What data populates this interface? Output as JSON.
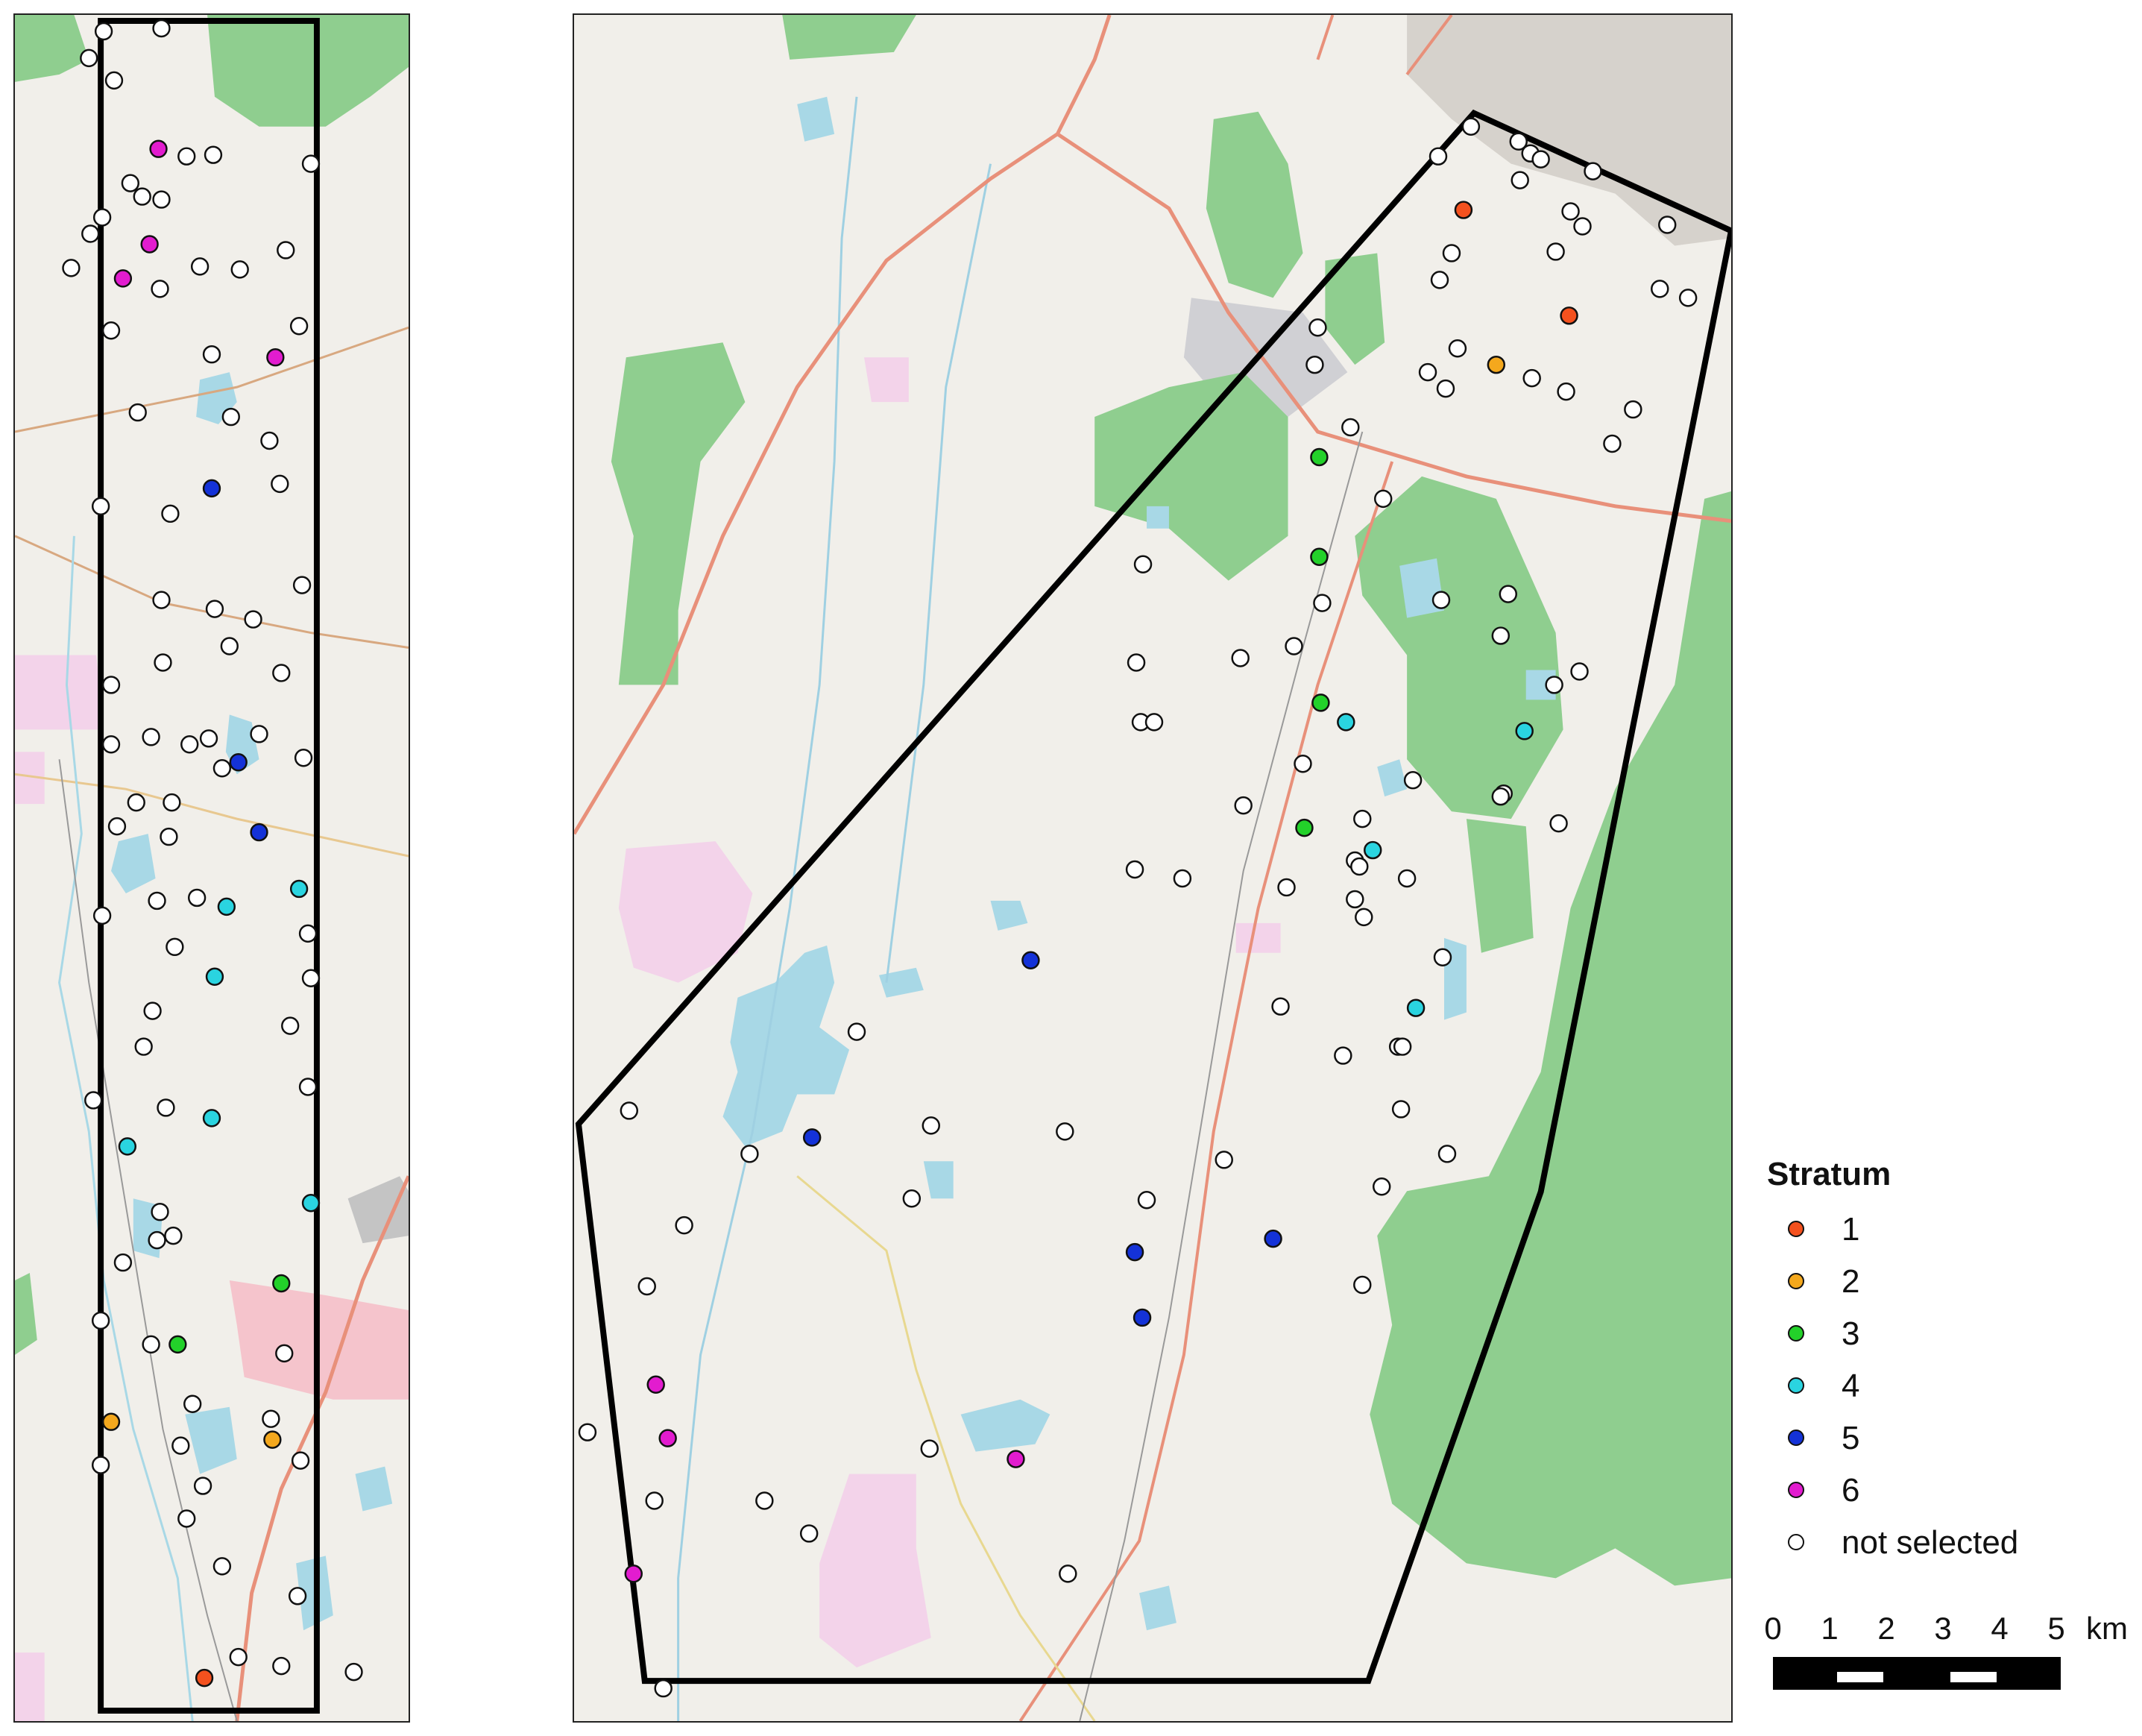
{
  "legend": {
    "title": "Stratum",
    "items": [
      {
        "label": "1",
        "color": "#f4511e"
      },
      {
        "label": "2",
        "color": "#f4a81d"
      },
      {
        "label": "3",
        "color": "#23d12a"
      },
      {
        "label": "4",
        "color": "#2ad4e0"
      },
      {
        "label": "5",
        "color": "#1432d8"
      },
      {
        "label": "6",
        "color": "#e21ccf"
      },
      {
        "label": "not selected",
        "color": "#ffffff"
      }
    ]
  },
  "scalebar": {
    "ticks": [
      "0",
      "1",
      "2",
      "3",
      "4",
      "5"
    ],
    "unit": "km"
  },
  "map_style": {
    "background": "#f1efea",
    "forest": "#8fce8f",
    "water": "#a8d8e6",
    "industrial": "#f3d3ea",
    "major_road": "#e8907a",
    "boundary": "#000000"
  }
}
